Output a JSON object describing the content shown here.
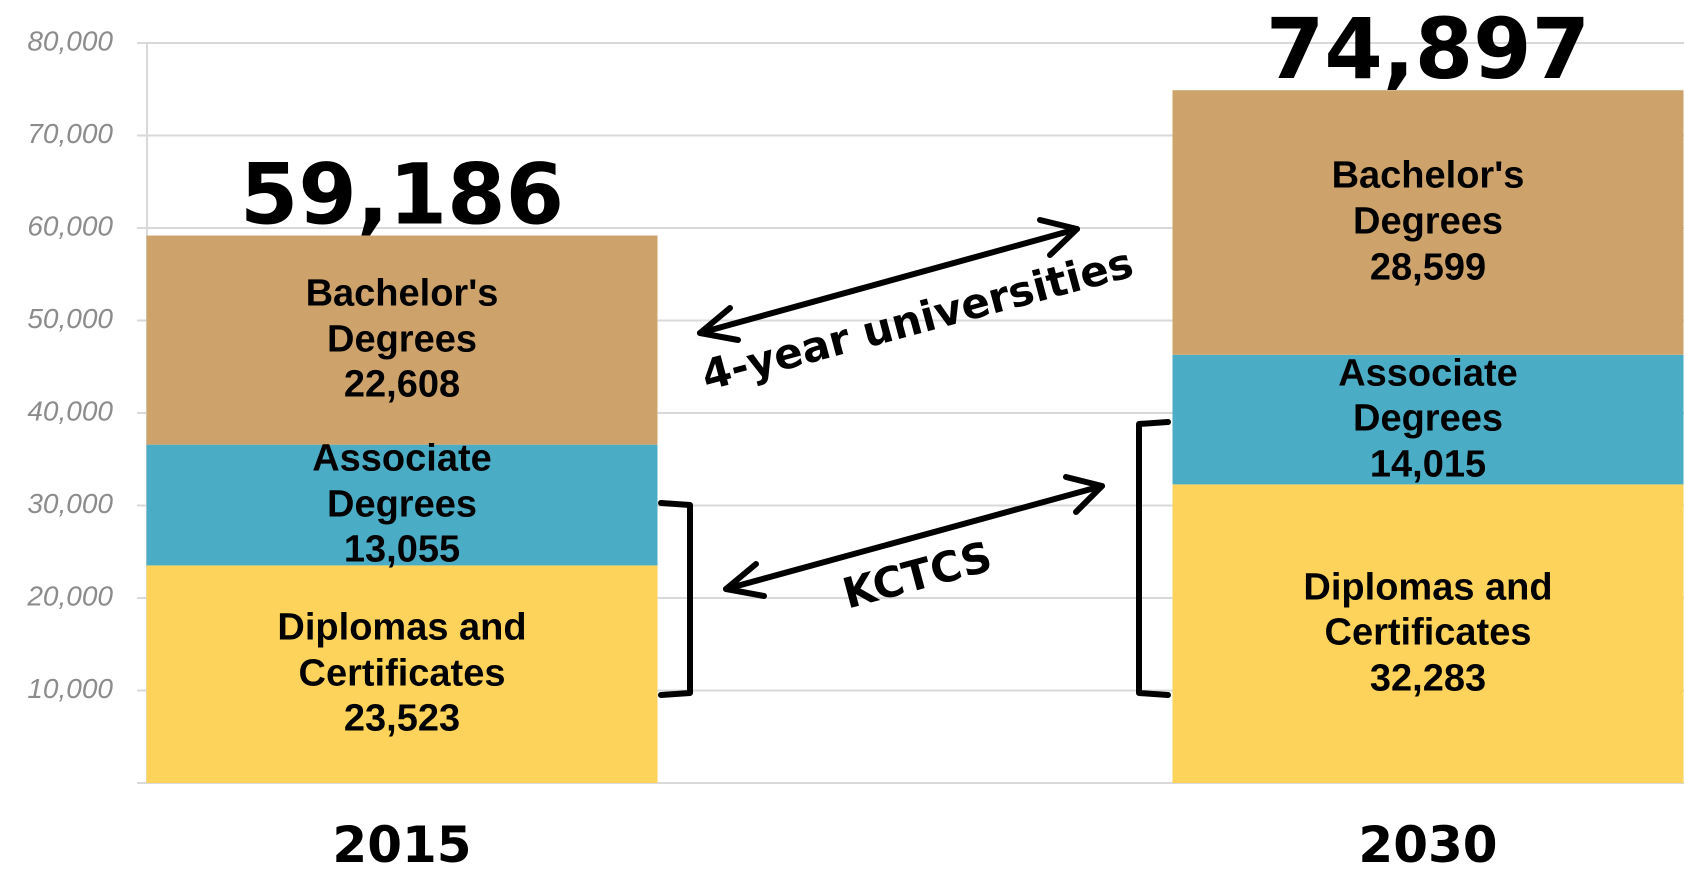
{
  "chart_data": {
    "type": "stacked_bar",
    "categories": [
      "2015",
      "2030"
    ],
    "series": [
      {
        "name": "Diplomas and Certificates",
        "color": "#fdd35b",
        "values": [
          23523,
          32283
        ],
        "value_labels": [
          "23,523",
          "32,283"
        ]
      },
      {
        "name": "Associate Degrees",
        "color": "#4bacc6",
        "values": [
          13055,
          14015
        ],
        "value_labels": [
          "13,055",
          "14,015"
        ]
      },
      {
        "name": "Bachelor's Degrees",
        "color": "#cda36b",
        "values": [
          22608,
          28599
        ],
        "value_labels": [
          "22,608",
          "28,599"
        ]
      }
    ],
    "totals": [
      59186,
      74897
    ],
    "total_labels": [
      "59,186",
      "74,897"
    ],
    "ylim": [
      0,
      80000
    ],
    "yticks": [
      {
        "value": 10000,
        "label": "10,000"
      },
      {
        "value": 20000,
        "label": "20,000"
      },
      {
        "value": 30000,
        "label": "30,000"
      },
      {
        "value": 40000,
        "label": "40,000"
      },
      {
        "value": 50000,
        "label": "50,000"
      },
      {
        "value": 60000,
        "label": "60,000"
      },
      {
        "value": 70000,
        "label": "70,000"
      },
      {
        "value": 80000,
        "label": "80,000"
      }
    ],
    "grid": true,
    "annotations": [
      "4-year universities",
      "KCTCS"
    ]
  }
}
